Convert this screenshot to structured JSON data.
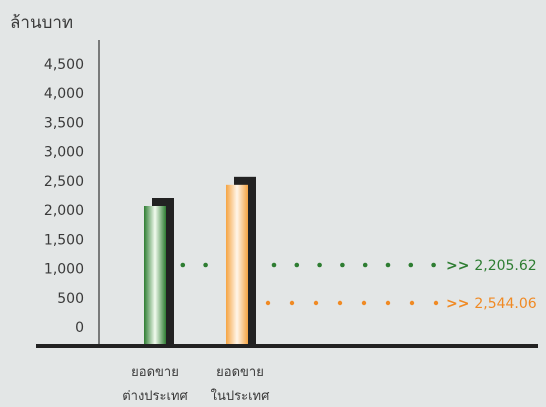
{
  "chart_data": {
    "type": "bar",
    "unit_label": "ล้านบาท",
    "y_ticks": [
      "0",
      "500",
      "1,000",
      "1,500",
      "2,000",
      "2,500",
      "3,000",
      "3,500",
      "4,000",
      "4,500"
    ],
    "ylim": [
      0,
      4500
    ],
    "categories": [
      [
        "ยอดขาย",
        "ต่างประเทศ"
      ],
      [
        "ยอดขาย",
        "ในประเทศ"
      ]
    ],
    "values": [
      2205.62,
      2544.06
    ],
    "value_labels": [
      "2,205.62",
      "2,544.06"
    ],
    "annotation_prefix": ">>",
    "colors": [
      "#2e7d32",
      "#f08a24"
    ],
    "grid": false
  }
}
